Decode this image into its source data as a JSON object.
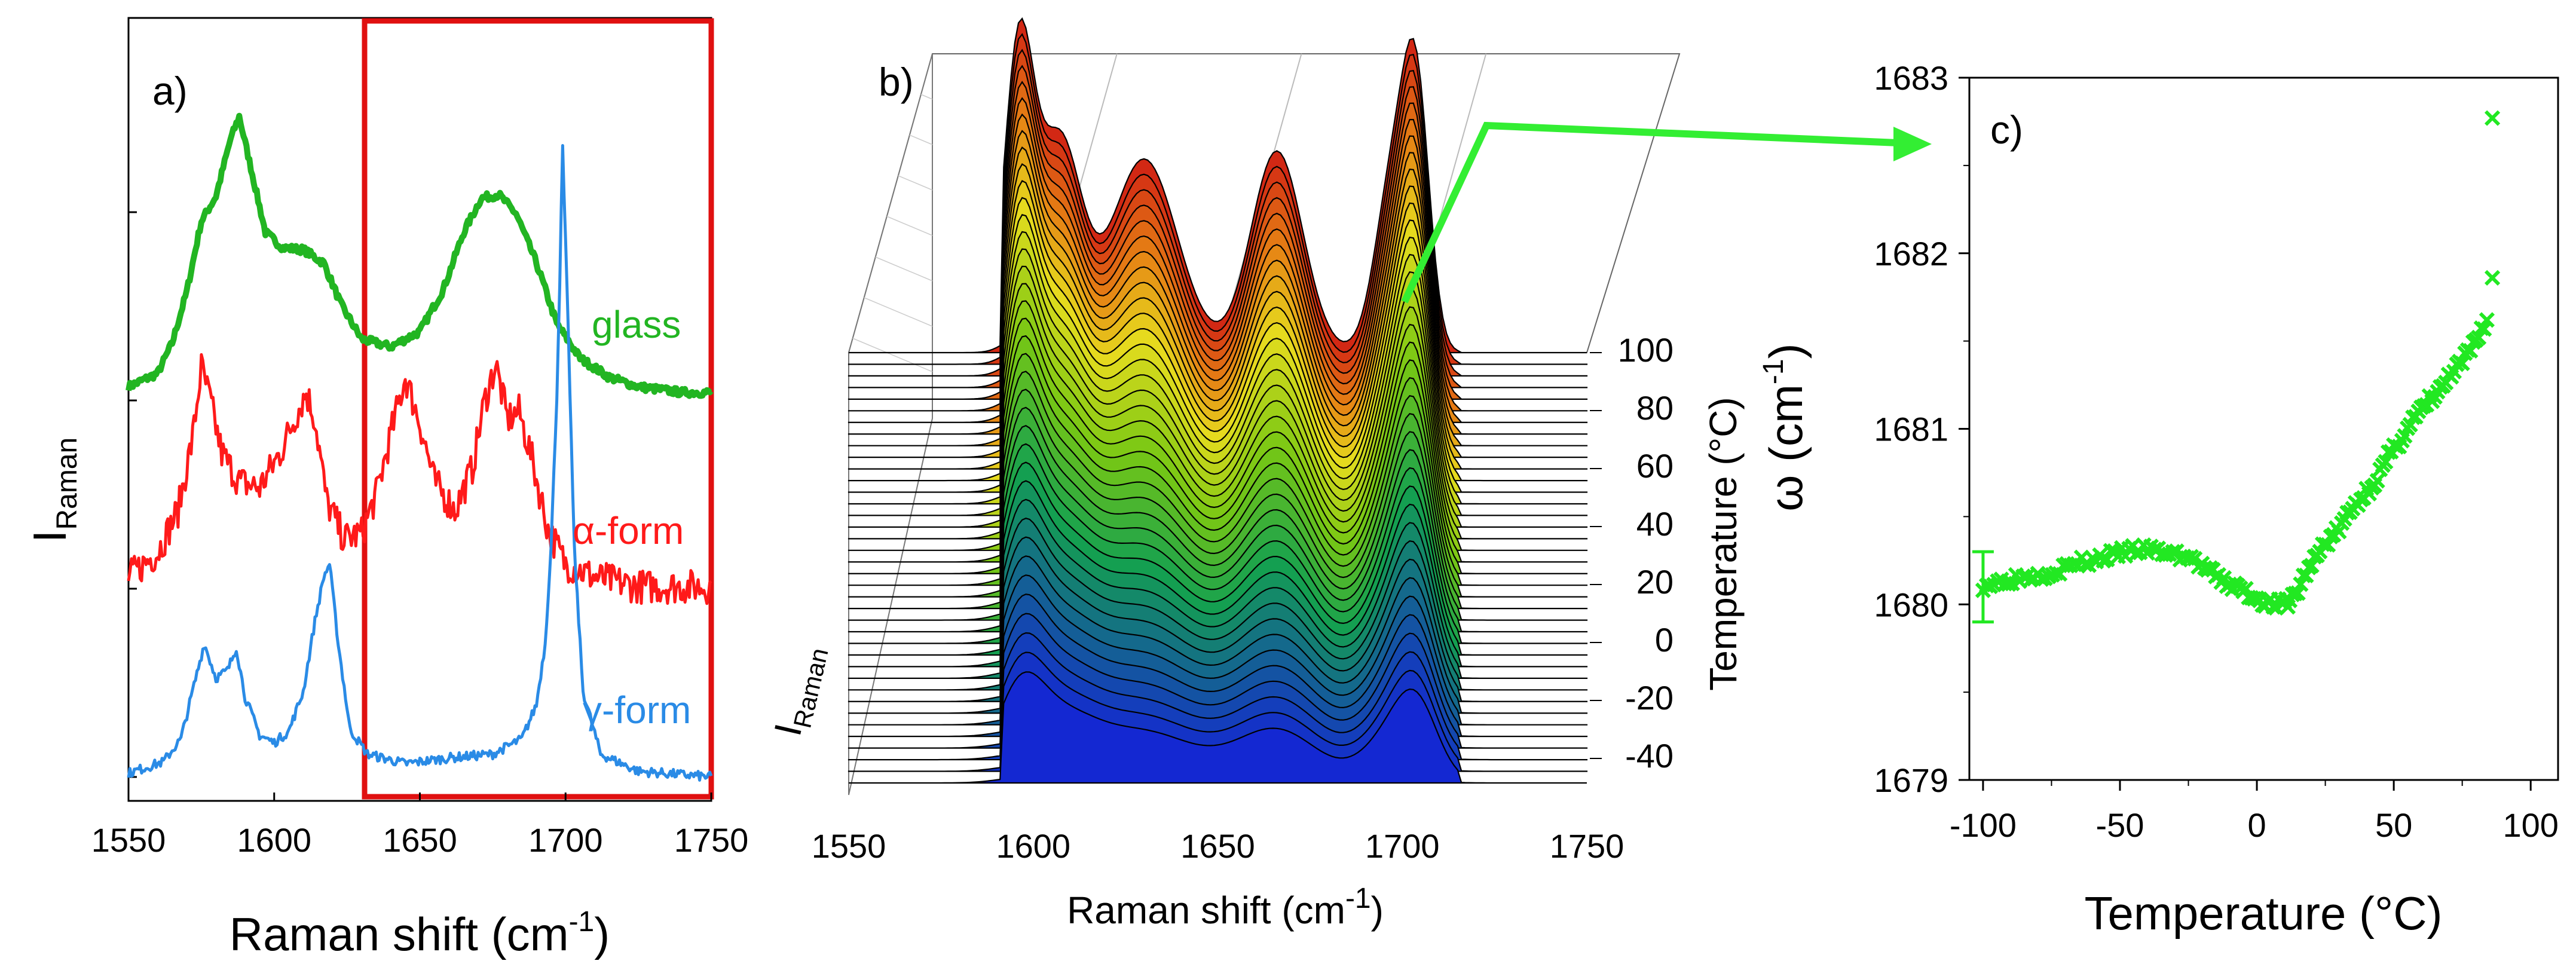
{
  "colors": {
    "glass": "#22b522",
    "alpha": "#ff1a1a",
    "gamma": "#2a8be6",
    "box": "#e01010",
    "green_marker": "#22e822",
    "arrow": "#33ee33"
  },
  "chart_data": [
    {
      "panel": "a)",
      "type": "line",
      "xlabel": "Raman shift (cm",
      "xlabel_sup": "-1",
      "xlabel_end": ")",
      "ylabel_main": "I",
      "ylabel_sub": "Raman",
      "xlim": [
        1550,
        1750
      ],
      "xticks": [
        "1550",
        "1600",
        "1650",
        "1700",
        "1750"
      ],
      "highlight_range": [
        1630,
        1750
      ],
      "series": [
        {
          "name": "glass",
          "label": "glass",
          "color": "#22b522",
          "offset": 2.0,
          "x": [
            1550,
            1560,
            1565,
            1570,
            1575,
            1580,
            1585,
            1588,
            1592,
            1597,
            1603,
            1610,
            1617,
            1623,
            1630,
            1640,
            1650,
            1658,
            1665,
            1671,
            1677,
            1683,
            1690,
            1697,
            1705,
            1715,
            1725,
            1740,
            1750
          ],
          "y": [
            0.05,
            0.12,
            0.28,
            0.55,
            0.92,
            1.05,
            1.35,
            1.47,
            1.2,
            0.86,
            0.78,
            0.77,
            0.7,
            0.48,
            0.3,
            0.26,
            0.34,
            0.56,
            0.86,
            1.04,
            1.06,
            0.96,
            0.7,
            0.38,
            0.2,
            0.1,
            0.05,
            0.02,
            0.02
          ]
        },
        {
          "name": "alpha-form",
          "label": "α-form",
          "color": "#ff1a1a",
          "offset": 1.0,
          "x": [
            1550,
            1560,
            1567,
            1572,
            1575,
            1578,
            1582,
            1588,
            1595,
            1602,
            1608,
            1611,
            1614,
            1618,
            1624,
            1630,
            1635,
            1640,
            1645,
            1650,
            1655,
            1662,
            1668,
            1672,
            1676,
            1680,
            1684,
            1688,
            1694,
            1700,
            1710,
            1725,
            1740,
            1750
          ],
          "y": [
            0.05,
            0.18,
            0.4,
            0.78,
            1.15,
            0.98,
            0.7,
            0.55,
            0.52,
            0.7,
            0.92,
            1.02,
            0.88,
            0.45,
            0.25,
            0.28,
            0.48,
            0.8,
            1.1,
            0.86,
            0.55,
            0.4,
            0.62,
            0.96,
            1.17,
            0.88,
            0.92,
            0.7,
            0.3,
            0.12,
            0.05,
            0.0,
            0.0,
            0.0
          ]
        },
        {
          "name": "gamma-form",
          "label": "γ-form",
          "color": "#2a8be6",
          "offset": 0.0,
          "x": [
            1550,
            1562,
            1568,
            1572,
            1576,
            1580,
            1584,
            1587,
            1590,
            1595,
            1600,
            1605,
            1610,
            1614,
            1617,
            1619,
            1622,
            1626,
            1632,
            1645,
            1660,
            1675,
            1685,
            1690,
            1693,
            1695,
            1697,
            1698,
            1699,
            1701,
            1703,
            1706,
            1712,
            1725,
            1750
          ],
          "y": [
            0.02,
            0.08,
            0.2,
            0.45,
            0.7,
            0.52,
            0.56,
            0.68,
            0.42,
            0.22,
            0.18,
            0.24,
            0.45,
            0.82,
            1.05,
            1.12,
            0.7,
            0.25,
            0.12,
            0.07,
            0.1,
            0.12,
            0.2,
            0.38,
            0.7,
            1.2,
            2.0,
            2.6,
            3.3,
            2.3,
            1.2,
            0.45,
            0.12,
            0.03,
            0.0
          ]
        }
      ],
      "labels_display": {
        "glass": "glass",
        "alpha": "α-form",
        "gamma": "γ-form"
      }
    },
    {
      "panel": "b)",
      "type": "area",
      "description_3d": "waterfall",
      "xlabel": "Raman shift (cm",
      "xlabel_sup": "-1",
      "xlabel_end": ")",
      "zlabel": "Temperature (°C)",
      "ylabel_main": "I",
      "ylabel_sub": "Raman",
      "xlim": [
        1550,
        1750
      ],
      "xticks": [
        "1550",
        "1600",
        "1650",
        "1700",
        "1750"
      ],
      "temperature_range": [
        -50,
        100
      ],
      "tticks": [
        "100",
        "80",
        "60",
        "40",
        "20",
        "0",
        "-20",
        "-40"
      ],
      "peaks_cm": [
        1596,
        1607,
        1630,
        1666,
        1698,
        1704
      ]
    },
    {
      "panel": "c)",
      "type": "scatter",
      "xlabel": "Temperature (°C)",
      "ylabel": "ω (cm",
      "ylabel_sup": "-1",
      "ylabel_end": ")",
      "xlim": [
        -105,
        110
      ],
      "ylim": [
        1679,
        1683
      ],
      "xticks": [
        "-100",
        "-50",
        "0",
        "50",
        "100"
      ],
      "yticks": [
        "1683",
        "1682",
        "1681",
        "1680",
        "1679"
      ],
      "errorbar": {
        "x": -100,
        "y": 1680.1,
        "low": 1679.9,
        "high": 1680.3
      },
      "series": [
        {
          "name": "omega",
          "marker": "x",
          "color": "#22e822",
          "x": [
            -100,
            -96,
            -92,
            -88,
            -84,
            -80,
            -76,
            -72,
            -68,
            -64,
            -60,
            -56,
            -52,
            -48,
            -44,
            -40,
            -36,
            -32,
            -28,
            -24,
            -20,
            -17,
            -14,
            -11,
            -8,
            -5,
            -2,
            1,
            4,
            7,
            10,
            12,
            15,
            18,
            21,
            24,
            27,
            30,
            33,
            36,
            39,
            42,
            45,
            48,
            51,
            54,
            57,
            60,
            63,
            66,
            69,
            72,
            75,
            78,
            81,
            84,
            86,
            86
          ],
          "y": [
            1680.11,
            1680.12,
            1680.14,
            1680.15,
            1680.16,
            1680.17,
            1680.18,
            1680.2,
            1680.22,
            1680.24,
            1680.25,
            1680.27,
            1680.28,
            1680.3,
            1680.31,
            1680.31,
            1680.3,
            1680.29,
            1680.28,
            1680.26,
            1680.22,
            1680.18,
            1680.15,
            1680.12,
            1680.1,
            1680.08,
            1680.05,
            1680.03,
            1680.01,
            1680.0,
            1680.0,
            1680.02,
            1680.08,
            1680.18,
            1680.25,
            1680.33,
            1680.38,
            1680.43,
            1680.5,
            1680.57,
            1680.62,
            1680.68,
            1680.75,
            1680.84,
            1680.9,
            1680.98,
            1681.05,
            1681.1,
            1681.16,
            1681.2,
            1681.27,
            1681.32,
            1681.38,
            1681.45,
            1681.54,
            1681.62,
            1681.86,
            1682.77
          ]
        }
      ]
    }
  ]
}
